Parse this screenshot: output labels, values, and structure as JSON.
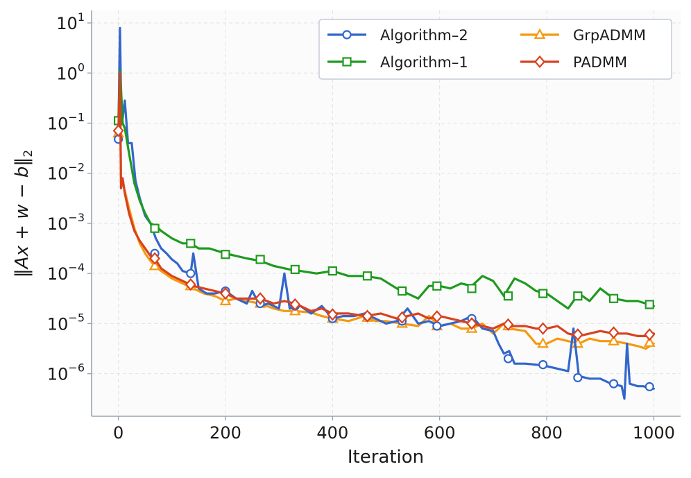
{
  "chart_data": {
    "type": "line",
    "title": "",
    "xlabel": "Iteration",
    "ylabel": "‖Ax + w − b‖₂",
    "ylabel_parts": {
      "norm_open": "‖",
      "expr": "Ax + w − b",
      "norm_close": "‖",
      "subscript": "2"
    },
    "xscale": "linear",
    "yscale": "log",
    "xlim": [
      -50,
      1050
    ],
    "ylim_log10": [
      -6.85,
      1.25
    ],
    "xticks": [
      0,
      200,
      400,
      600,
      800,
      1000
    ],
    "xtick_labels": [
      "0",
      "200",
      "400",
      "600",
      "800",
      "1000"
    ],
    "yticks_log10": [
      1,
      0,
      -1,
      -2,
      -3,
      -4,
      -5,
      -6
    ],
    "ytick_labels": [
      {
        "base": "10",
        "exp": "1"
      },
      {
        "base": "10",
        "exp": "0"
      },
      {
        "base": "10",
        "exp": "−1"
      },
      {
        "base": "10",
        "exp": "−2"
      },
      {
        "base": "10",
        "exp": "−3"
      },
      {
        "base": "10",
        "exp": "−4"
      },
      {
        "base": "10",
        "exp": "−5"
      },
      {
        "base": "10",
        "exp": "−6"
      }
    ],
    "grid": true,
    "legend_position": "top-right",
    "legend_columns": 2,
    "series": [
      {
        "name": "Algorithm–2",
        "color": "#3366cc",
        "marker": "circle",
        "x": [
          0,
          3,
          5,
          8,
          12,
          18,
          25,
          32,
          40,
          50,
          60,
          70,
          80,
          90,
          100,
          110,
          120,
          135,
          140,
          150,
          165,
          180,
          200,
          220,
          240,
          250,
          265,
          280,
          300,
          310,
          320,
          340,
          360,
          380,
          400,
          420,
          440,
          460,
          480,
          500,
          520,
          540,
          560,
          580,
          600,
          620,
          640,
          660,
          680,
          700,
          710,
          720,
          730,
          740,
          760,
          780,
          800,
          820,
          840,
          850,
          860,
          880,
          900,
          920,
          930,
          940,
          945,
          950,
          955,
          970,
          980,
          990,
          1000
        ],
        "log10_y": [
          -1.3,
          0.9,
          -0.4,
          -0.9,
          -0.55,
          -1.4,
          -1.4,
          -2.15,
          -2.5,
          -2.85,
          -3.0,
          -3.3,
          -3.5,
          -3.6,
          -3.72,
          -3.8,
          -3.95,
          -4.0,
          -3.6,
          -4.3,
          -4.4,
          -4.4,
          -4.35,
          -4.5,
          -4.6,
          -4.35,
          -4.65,
          -4.6,
          -4.7,
          -4.0,
          -4.7,
          -4.65,
          -4.8,
          -4.65,
          -4.9,
          -4.85,
          -4.85,
          -4.8,
          -4.9,
          -5.0,
          -4.95,
          -4.7,
          -5.0,
          -4.95,
          -5.05,
          -5.0,
          -4.95,
          -4.85,
          -5.1,
          -5.15,
          -5.4,
          -5.6,
          -5.55,
          -5.8,
          -5.8,
          -5.82,
          -5.85,
          -5.9,
          -5.95,
          -5.1,
          -6.05,
          -6.1,
          -6.1,
          -6.2,
          -6.22,
          -6.25,
          -6.5,
          -5.4,
          -6.2,
          -6.25,
          -6.25,
          -6.28,
          -6.3
        ],
        "marker_x": [
          0,
          68,
          135,
          200,
          265,
          330,
          400,
          465,
          530,
          595,
          660,
          728,
          793,
          858,
          925,
          992
        ],
        "marker_log10_y": [
          -1.32,
          -3.6,
          -4.0,
          -4.35,
          -4.6,
          -4.65,
          -4.9,
          -4.85,
          -4.95,
          -5.05,
          -4.9,
          -5.7,
          -5.82,
          -6.08,
          -6.2,
          -6.26
        ]
      },
      {
        "name": "Algorithm–1",
        "color": "#1f9a1f",
        "marker": "square",
        "x": [
          0,
          3,
          5,
          8,
          12,
          20,
          30,
          40,
          50,
          60,
          70,
          80,
          100,
          120,
          135,
          150,
          170,
          200,
          220,
          240,
          265,
          290,
          320,
          340,
          370,
          400,
          430,
          460,
          490,
          520,
          540,
          560,
          580,
          600,
          620,
          640,
          660,
          680,
          700,
          720,
          740,
          760,
          780,
          800,
          820,
          840,
          860,
          880,
          900,
          925,
          950,
          970,
          985,
          1000
        ],
        "log10_y": [
          -0.95,
          0.05,
          -0.3,
          -1.0,
          -1.1,
          -1.6,
          -2.2,
          -2.55,
          -2.8,
          -3.0,
          -3.05,
          -3.15,
          -3.3,
          -3.4,
          -3.4,
          -3.5,
          -3.5,
          -3.6,
          -3.65,
          -3.7,
          -3.75,
          -3.85,
          -3.92,
          -3.95,
          -4.0,
          -3.95,
          -4.05,
          -4.05,
          -4.1,
          -4.3,
          -4.4,
          -4.5,
          -4.25,
          -4.25,
          -4.3,
          -4.2,
          -4.25,
          -4.05,
          -4.15,
          -4.45,
          -4.1,
          -4.2,
          -4.35,
          -4.4,
          -4.55,
          -4.7,
          -4.4,
          -4.55,
          -4.3,
          -4.5,
          -4.55,
          -4.55,
          -4.6,
          -4.65
        ],
        "marker_x": [
          0,
          68,
          135,
          200,
          265,
          330,
          400,
          465,
          530,
          595,
          660,
          728,
          793,
          858,
          925,
          992
        ],
        "marker_log10_y": [
          -0.95,
          -3.1,
          -3.4,
          -3.62,
          -3.72,
          -3.92,
          -3.95,
          -4.05,
          -4.35,
          -4.25,
          -4.3,
          -4.45,
          -4.4,
          -4.45,
          -4.5,
          -4.62
        ]
      },
      {
        "name": "GrpADMM",
        "color": "#f5990f",
        "marker": "triangle",
        "x": [
          0,
          3,
          5,
          8,
          12,
          20,
          30,
          40,
          50,
          60,
          68,
          80,
          100,
          120,
          140,
          160,
          180,
          200,
          220,
          240,
          265,
          290,
          310,
          330,
          360,
          380,
          400,
          430,
          460,
          480,
          500,
          530,
          560,
          580,
          600,
          620,
          640,
          660,
          680,
          700,
          720,
          730,
          760,
          780,
          800,
          820,
          840,
          860,
          880,
          900,
          925,
          950,
          970,
          985,
          1000
        ],
        "log10_y": [
          -1.2,
          -0.15,
          -2.1,
          -2.2,
          -2.35,
          -2.7,
          -3.1,
          -3.4,
          -3.6,
          -3.75,
          -3.85,
          -3.95,
          -4.1,
          -4.2,
          -4.3,
          -4.4,
          -4.45,
          -4.55,
          -4.5,
          -4.55,
          -4.6,
          -4.7,
          -4.75,
          -4.75,
          -4.78,
          -4.85,
          -4.9,
          -4.95,
          -4.85,
          -4.95,
          -4.95,
          -5.0,
          -5.05,
          -4.85,
          -5.05,
          -5.0,
          -5.1,
          -5.1,
          -5.0,
          -5.2,
          -5.0,
          -5.1,
          -5.15,
          -5.4,
          -5.4,
          -5.3,
          -5.35,
          -5.4,
          -5.3,
          -5.35,
          -5.35,
          -5.4,
          -5.45,
          -5.5,
          -5.4
        ],
        "marker_x": [
          0,
          68,
          135,
          200,
          265,
          330,
          400,
          465,
          530,
          595,
          660,
          728,
          793,
          858,
          925,
          992
        ],
        "marker_log10_y": [
          -1.2,
          -3.85,
          -4.25,
          -4.55,
          -4.6,
          -4.75,
          -4.9,
          -4.88,
          -5.0,
          -5.05,
          -5.1,
          -5.05,
          -5.4,
          -5.4,
          -5.35,
          -5.38
        ]
      },
      {
        "name": "PADMM",
        "color": "#d9411e",
        "marker": "diamond",
        "x": [
          0,
          3,
          5,
          8,
          12,
          20,
          30,
          40,
          50,
          60,
          68,
          80,
          100,
          120,
          140,
          160,
          180,
          200,
          220,
          240,
          265,
          290,
          310,
          330,
          360,
          380,
          400,
          430,
          460,
          490,
          520,
          540,
          560,
          580,
          600,
          620,
          640,
          660,
          680,
          700,
          720,
          730,
          760,
          780,
          800,
          820,
          840,
          860,
          880,
          900,
          925,
          950,
          970,
          985,
          1000
        ],
        "log10_y": [
          -1.15,
          0.0,
          -2.3,
          -2.1,
          -2.4,
          -2.8,
          -3.15,
          -3.35,
          -3.5,
          -3.65,
          -3.7,
          -3.9,
          -4.05,
          -4.15,
          -4.25,
          -4.3,
          -4.35,
          -4.4,
          -4.5,
          -4.5,
          -4.5,
          -4.6,
          -4.55,
          -4.6,
          -4.75,
          -4.7,
          -4.8,
          -4.8,
          -4.85,
          -4.8,
          -4.9,
          -4.85,
          -4.8,
          -4.9,
          -4.85,
          -4.9,
          -4.95,
          -5.0,
          -5.05,
          -5.1,
          -5.0,
          -5.05,
          -5.05,
          -5.1,
          -5.1,
          -5.05,
          -5.2,
          -5.25,
          -5.2,
          -5.15,
          -5.2,
          -5.2,
          -5.25,
          -5.25,
          -5.2
        ],
        "marker_x": [
          0,
          68,
          135,
          200,
          265,
          330,
          400,
          465,
          530,
          595,
          660,
          728,
          793,
          858,
          925,
          992
        ],
        "marker_log10_y": [
          -1.15,
          -3.7,
          -4.22,
          -4.4,
          -4.5,
          -4.62,
          -4.82,
          -4.85,
          -4.88,
          -4.86,
          -5.0,
          -5.02,
          -5.1,
          -5.22,
          -5.18,
          -5.22
        ]
      }
    ]
  },
  "style": {
    "background": "#ffffff",
    "plot_background": "#fbfbfb",
    "grid_color": "#e2e2e2",
    "axis_color": "#9aa3ad",
    "legend_border": "#c5ccd6"
  }
}
